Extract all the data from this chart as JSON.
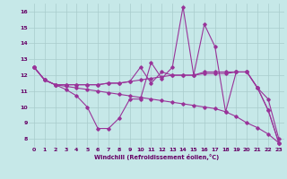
{
  "xlabel": "Windchill (Refroidissement éolien,°C)",
  "background_color": "#c6e8e8",
  "grid_color": "#a8cccc",
  "line_color": "#993399",
  "tick_color": "#660066",
  "xlim": [
    0,
    23
  ],
  "ylim": [
    7.5,
    16.5
  ],
  "yticks": [
    8,
    9,
    10,
    11,
    12,
    13,
    14,
    15,
    16
  ],
  "xticks": [
    0,
    1,
    2,
    3,
    4,
    5,
    6,
    7,
    8,
    9,
    10,
    11,
    12,
    13,
    14,
    15,
    16,
    17,
    18,
    19,
    20,
    21,
    22,
    23
  ],
  "series": [
    [
      12.5,
      11.7,
      11.4,
      11.3,
      11.2,
      11.1,
      11.0,
      10.9,
      10.8,
      10.7,
      10.6,
      10.5,
      10.4,
      10.3,
      10.2,
      10.1,
      10.0,
      9.9,
      9.7,
      9.4,
      9.0,
      8.7,
      8.3,
      7.75
    ],
    [
      12.5,
      11.7,
      11.4,
      11.4,
      11.4,
      11.4,
      11.4,
      11.5,
      11.5,
      11.6,
      11.7,
      11.8,
      11.9,
      12.0,
      12.0,
      12.0,
      12.1,
      12.1,
      12.1,
      12.2,
      12.2,
      11.2,
      10.5,
      8.0
    ],
    [
      12.5,
      11.7,
      11.4,
      11.4,
      11.4,
      11.4,
      11.4,
      11.5,
      11.5,
      11.6,
      12.5,
      11.5,
      12.2,
      12.0,
      12.0,
      12.0,
      12.2,
      12.2,
      12.2,
      12.2,
      12.2,
      11.2,
      9.8,
      7.75
    ],
    [
      12.5,
      11.7,
      11.4,
      11.1,
      10.7,
      10.0,
      8.65,
      8.65,
      9.3,
      10.5,
      10.5,
      12.8,
      11.8,
      12.5,
      16.3,
      12.0,
      15.2,
      13.8,
      9.7,
      12.2,
      12.2,
      11.2,
      9.8,
      7.75
    ]
  ]
}
